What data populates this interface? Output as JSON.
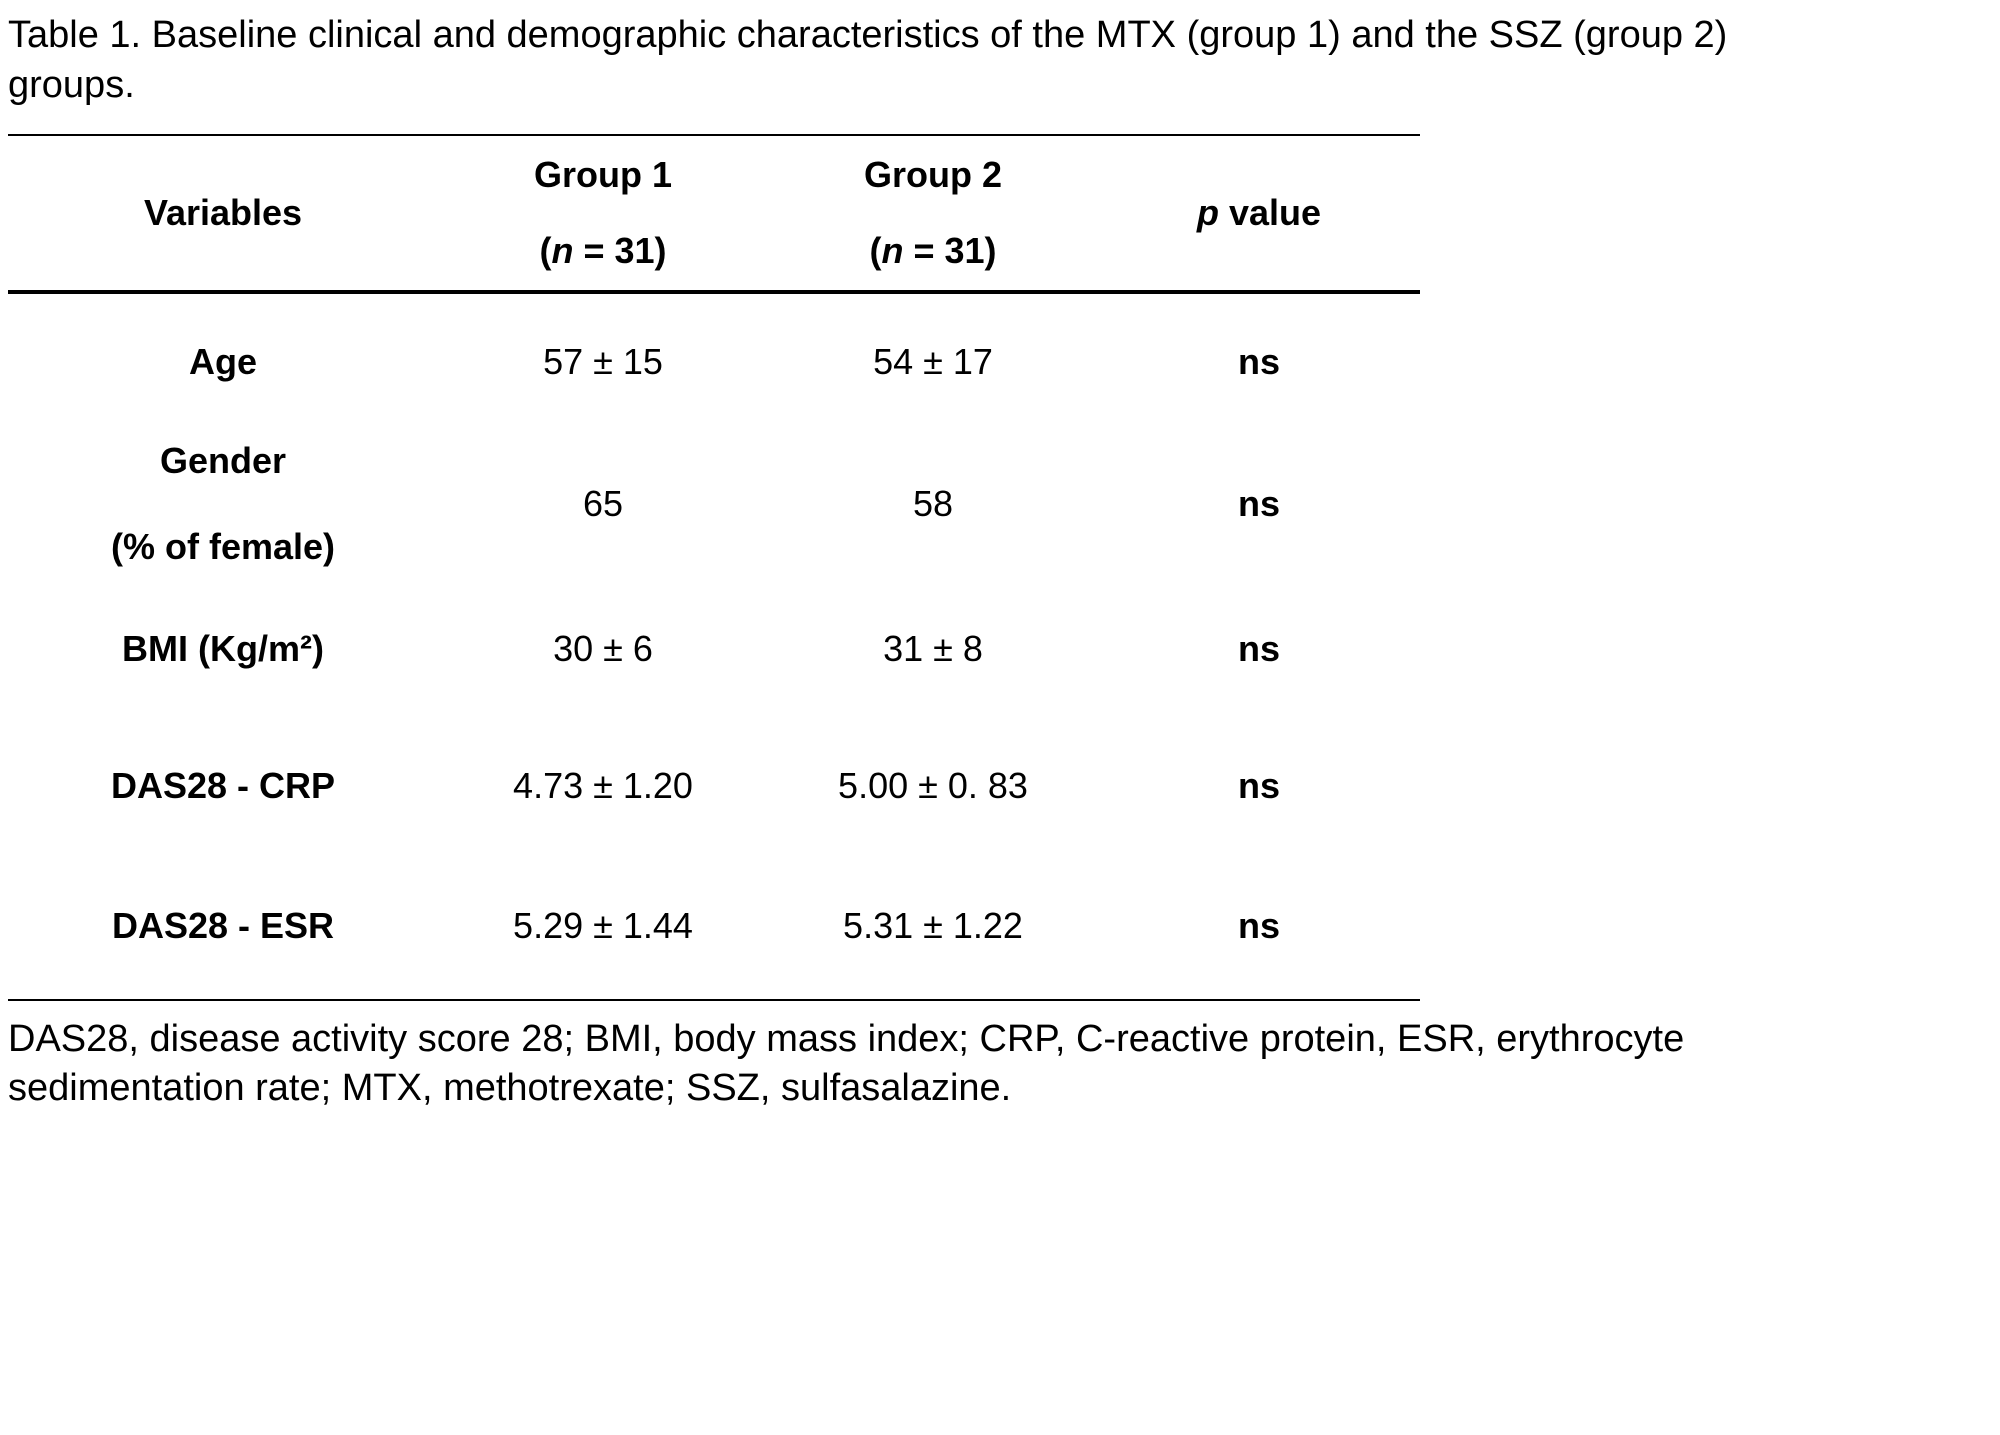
{
  "page": {
    "title_line1": "Table 1. Baseline clinical and demographic characteristics of the MTX (group 1) and the SSZ (group 2)",
    "title_line2": "groups.",
    "footnote_line1": "DAS28, disease activity score 28; BMI, body mass index; CRP, C-reactive protein, ESR, erythrocyte",
    "footnote_line2": "sedimentation rate; MTX, methotrexate; SSZ, sulfasalazine."
  },
  "table": {
    "header": {
      "variables": "Variables",
      "group1_title": "Group 1",
      "group1_sub_pre": "(",
      "group1_sub_italic": "n",
      "group1_sub_post": " = 31)",
      "group2_title": "Group 2",
      "group2_sub_pre": "(",
      "group2_sub_italic": "n",
      "group2_sub_post": " = 31)",
      "p_italic": "p",
      "p_rest": " value"
    },
    "rows": [
      {
        "variable": "Age",
        "variable2": "",
        "group1": "57 ± 15",
        "group2": "54 ± 17",
        "p": "ns"
      },
      {
        "variable": "Gender",
        "variable2": "(% of female)",
        "group1": "65",
        "group2": "58",
        "p": "ns"
      },
      {
        "variable": "BMI (Kg/m²)",
        "variable2": "",
        "group1": "30 ± 6",
        "group2": "31 ± 8",
        "p": "ns"
      },
      {
        "variable": "DAS28 - CRP",
        "variable2": "",
        "group1": "4.73 ± 1.20",
        "group2": "5.00 ± 0. 83",
        "p": "ns"
      },
      {
        "variable": "DAS28 - ESR",
        "variable2": "",
        "group1": "5.29 ± 1.44",
        "group2": "5.31 ± 1.22",
        "p": "ns"
      }
    ]
  }
}
